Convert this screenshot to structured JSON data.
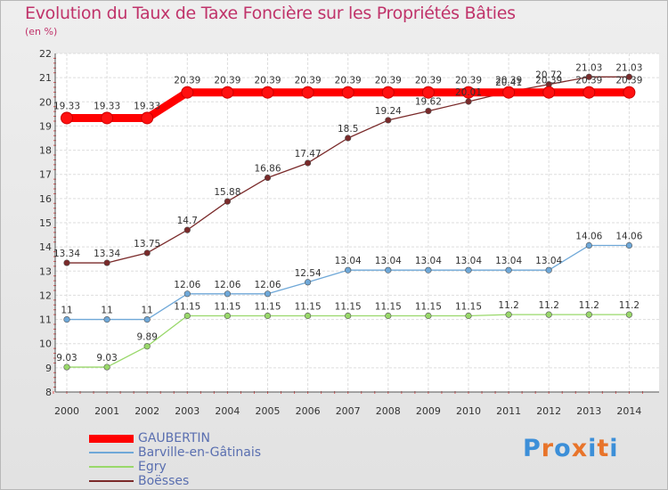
{
  "chart_data": {
    "type": "line",
    "title": "Evolution du Taux de Taxe Foncière sur les Propriétés Bâties",
    "ylabel": "(en %)",
    "xlabel": "",
    "x": [
      "2000",
      "2001",
      "2002",
      "2003",
      "2004",
      "2005",
      "2006",
      "2007",
      "2008",
      "2009",
      "2010",
      "2011",
      "2012",
      "2013",
      "2014"
    ],
    "ylim": [
      8,
      22
    ],
    "yticks": [
      "8",
      "9",
      "10",
      "11",
      "12",
      "13",
      "14",
      "15",
      "16",
      "17",
      "18",
      "19",
      "20",
      "21",
      "22"
    ],
    "series": [
      {
        "name": "GAUBERTIN",
        "color": "#ff0000",
        "values": [
          19.33,
          19.33,
          19.33,
          20.39,
          20.39,
          20.39,
          20.39,
          20.39,
          20.39,
          20.39,
          20.39,
          20.39,
          20.39,
          20.39,
          20.39
        ],
        "labels": [
          "19.33",
          "19.33",
          "19.33",
          "20.39",
          "20.39",
          "20.39",
          "20.39",
          "20.39",
          "20.39",
          "20.39",
          "20.39",
          "20.39",
          "20.39",
          "20.39",
          "20.39"
        ]
      },
      {
        "name": "Barville-en-Gâtinais",
        "color": "#6fa8d8",
        "values": [
          11,
          11,
          11,
          12.06,
          12.06,
          12.06,
          12.54,
          13.04,
          13.04,
          13.04,
          13.04,
          13.04,
          13.04,
          14.06,
          14.06
        ],
        "labels": [
          "11",
          "11",
          "11",
          "12.06",
          "12.06",
          "12.06",
          "12.54",
          "13.04",
          "13.04",
          "13.04",
          "13.04",
          "13.04",
          "13.04",
          "14.06",
          "14.06"
        ]
      },
      {
        "name": "Egry",
        "color": "#99d86a",
        "values": [
          9.03,
          9.03,
          9.89,
          11.15,
          11.15,
          11.15,
          11.15,
          11.15,
          11.15,
          11.15,
          11.15,
          11.2,
          11.2,
          11.2,
          11.2
        ],
        "labels": [
          "9.03",
          "9.03",
          "9.89",
          "11.15",
          "11.15",
          "11.15",
          "11.15",
          "11.15",
          "11.15",
          "11.15",
          "11.15",
          "11.2",
          "11.2",
          "11.2",
          "11.2"
        ]
      },
      {
        "name": "Boësses",
        "color": "#7a2a2a",
        "values": [
          13.34,
          13.34,
          13.75,
          14.7,
          15.88,
          16.86,
          17.47,
          18.5,
          19.24,
          19.62,
          20.01,
          20.41,
          20.72,
          21.03,
          21.03
        ],
        "labels": [
          "13.34",
          "13.34",
          "13.75",
          "14.7",
          "15.88",
          "16.86",
          "17.47",
          "18.5",
          "19.24",
          "19.62",
          "20.01",
          "20.41",
          "20.72",
          "21.03",
          "21.03"
        ]
      }
    ]
  },
  "logo": {
    "text": "Proxiti",
    "colors": [
      "#3c8fd8",
      "#e8742a",
      "#3c8fd8",
      "#e8742a",
      "#3c8fd8",
      "#e8742a",
      "#3c8fd8"
    ]
  }
}
